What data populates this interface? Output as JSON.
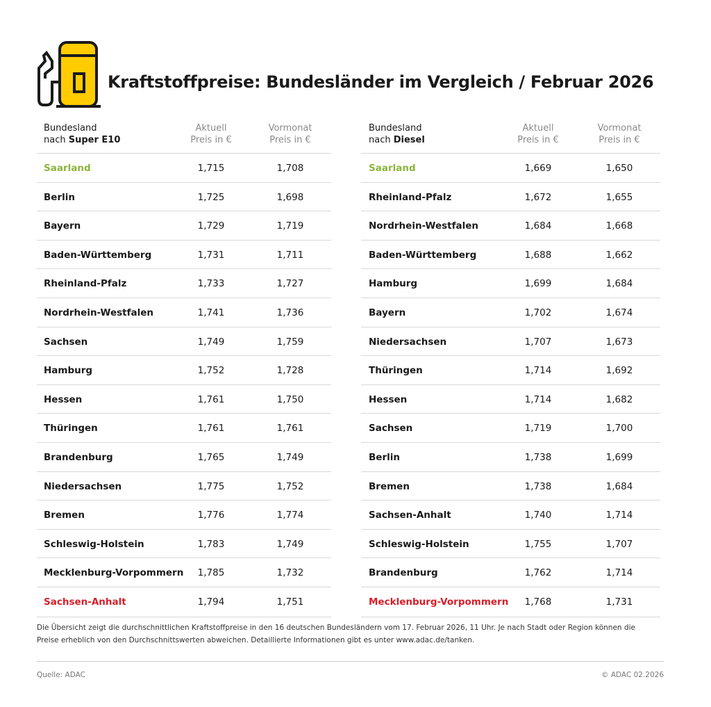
{
  "header": {
    "title": "Kraftstoffpreise: Bundesländer im Vergleich / Februar 2026"
  },
  "tables": [
    {
      "head": {
        "land": [
          "Bundesland",
          "nach",
          "Super E10"
        ],
        "current": [
          "Aktuell",
          "Preis in €"
        ],
        "previous": [
          "Vormonat",
          "Preis in €"
        ]
      },
      "rows": [
        [
          "Saarland",
          "1,715",
          "1,708"
        ],
        [
          "Berlin",
          "1,725",
          "1,698"
        ],
        [
          "Bayern",
          "1,729",
          "1,719"
        ],
        [
          "Baden-Württemberg",
          "1,731",
          "1,711"
        ],
        [
          "Rheinland-Pfalz",
          "1,733",
          "1,727"
        ],
        [
          "Nordrhein-Westfalen",
          "1,741",
          "1,736"
        ],
        [
          "Sachsen",
          "1,749",
          "1,759"
        ],
        [
          "Hamburg",
          "1,752",
          "1,728"
        ],
        [
          "Hessen",
          "1,761",
          "1,750"
        ],
        [
          "Thüringen",
          "1,761",
          "1,761"
        ],
        [
          "Brandenburg",
          "1,765",
          "1,749"
        ],
        [
          "Niedersachsen",
          "1,775",
          "1,752"
        ],
        [
          "Bremen",
          "1,776",
          "1,774"
        ],
        [
          "Schleswig-Holstein",
          "1,783",
          "1,749"
        ],
        [
          "Mecklenburg-Vorpommern",
          "1,785",
          "1,732"
        ],
        [
          "Sachsen-Anhalt",
          "1,794",
          "1,751"
        ]
      ]
    },
    {
      "head": {
        "land": [
          "Bundesland",
          "nach",
          "Diesel"
        ],
        "current": [
          "Aktuell",
          "Preis in €"
        ],
        "previous": [
          "Vormonat",
          "Preis in €"
        ]
      },
      "rows": [
        [
          "Saarland",
          "1,669",
          "1,650"
        ],
        [
          "Rheinland-Pfalz",
          "1,672",
          "1,655"
        ],
        [
          "Nordrhein-Westfalen",
          "1,684",
          "1,668"
        ],
        [
          "Baden-Württemberg",
          "1,688",
          "1,662"
        ],
        [
          "Hamburg",
          "1,699",
          "1,684"
        ],
        [
          "Bayern",
          "1,702",
          "1,674"
        ],
        [
          "Niedersachsen",
          "1,707",
          "1,673"
        ],
        [
          "Thüringen",
          "1,714",
          "1,692"
        ],
        [
          "Hessen",
          "1,714",
          "1,682"
        ],
        [
          "Sachsen",
          "1,719",
          "1,700"
        ],
        [
          "Berlin",
          "1,738",
          "1,699"
        ],
        [
          "Bremen",
          "1,738",
          "1,684"
        ],
        [
          "Sachsen-Anhalt",
          "1,740",
          "1,714"
        ],
        [
          "Schleswig-Holstein",
          "1,755",
          "1,707"
        ],
        [
          "Brandenburg",
          "1,762",
          "1,714"
        ],
        [
          "Mecklenburg-Vorpommern",
          "1,768",
          "1,731"
        ]
      ]
    }
  ],
  "footnote": [
    "Die Übersicht zeigt die durchschnittlichen Kraftstoffpreise in den 16 deutschen Bundesländern vom 17. Februar 2026, 11 Uhr. Je nach Stadt oder Region können die",
    "Preise erheblich von den Durchschnittswerten abweichen. Detaillierte Informationen gibt es unter www.adac.de/tanken."
  ],
  "footer": {
    "source": "Quelle: ADAC",
    "copyright": "© ADAC 02.2026"
  }
}
